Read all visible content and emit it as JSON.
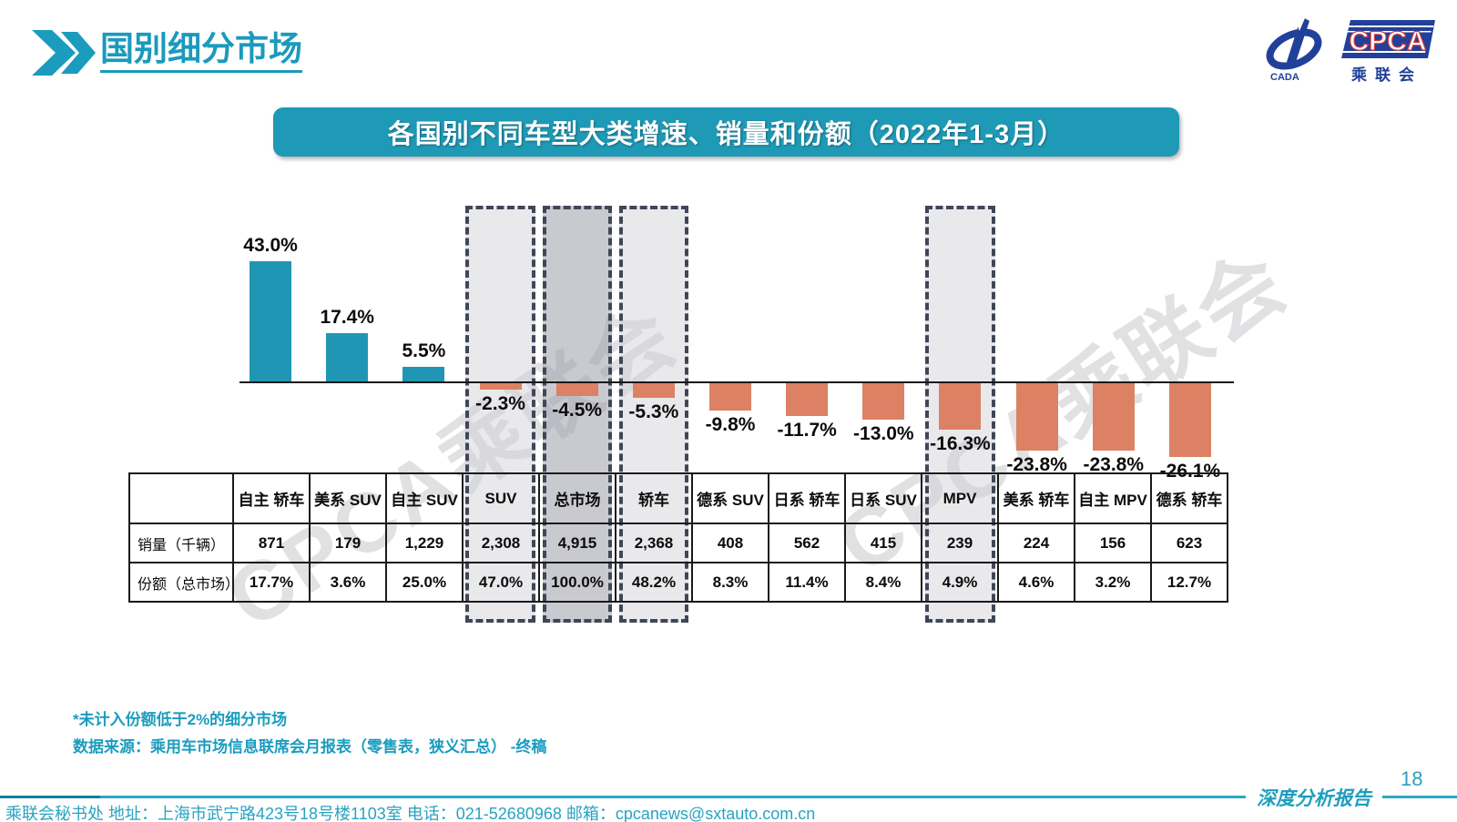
{
  "header": {
    "title": "国别细分市场"
  },
  "logo": {
    "cpca": "CPCA",
    "cn_name": "乘联会",
    "cada": "CADA"
  },
  "watermark": "CPCA乘联会",
  "chart_data": {
    "type": "bar",
    "title": "各国别不同车型大类增速、销量和份额（2022年1-3月）",
    "categories": [
      "自主 轿车",
      "美系 SUV",
      "自主 SUV",
      "SUV",
      "总市场",
      "轿车",
      "德系 SUV",
      "日系 轿车",
      "日系 SUV",
      "MPV",
      "美系 轿车",
      "自主 MPV",
      "德系 轿车"
    ],
    "series": [
      {
        "name": "增速",
        "unit": "%",
        "values": [
          43.0,
          17.4,
          5.5,
          -2.3,
          -4.5,
          -5.3,
          -9.8,
          -11.7,
          -13.0,
          -16.3,
          -23.8,
          -23.8,
          -26.1
        ]
      },
      {
        "name": "销量（千辆）",
        "values": [
          "871",
          "179",
          "1,229",
          "2,308",
          "4,915",
          "2,368",
          "408",
          "562",
          "415",
          "239",
          "224",
          "156",
          "623"
        ]
      },
      {
        "name": "份额（总市场）",
        "values": [
          "17.7%",
          "3.6%",
          "25.0%",
          "47.0%",
          "100.0%",
          "48.2%",
          "8.3%",
          "11.4%",
          "8.4%",
          "4.9%",
          "4.6%",
          "3.2%",
          "12.7%"
        ]
      }
    ],
    "highlighted": [
      {
        "category": "SUV",
        "style": "light"
      },
      {
        "category": "总市场",
        "style": "dark"
      },
      {
        "category": "轿车",
        "style": "light"
      },
      {
        "category": "MPV",
        "style": "light"
      }
    ],
    "ylim": [
      -30,
      45
    ],
    "grid": false,
    "bar_color_positive": "#2196B4",
    "bar_color_negative": "#DC8164",
    "legend": "none"
  },
  "table": {
    "row_labels": [
      "销量（千辆）",
      "份额（总市场）"
    ]
  },
  "notes": [
    "*未计入份额低于2%的细分市场",
    "数据来源：乘用车市场信息联席会月报表（零售表，狭义汇总） -终稿"
  ],
  "footer": {
    "address": "乘联会秘书处  地址：上海市武宁路423号18号楼1103室 电话：021-52680968  邮箱：cpcanews@sxtauto.com.cn",
    "report_label": "深度分析报告",
    "page_number": "18"
  }
}
